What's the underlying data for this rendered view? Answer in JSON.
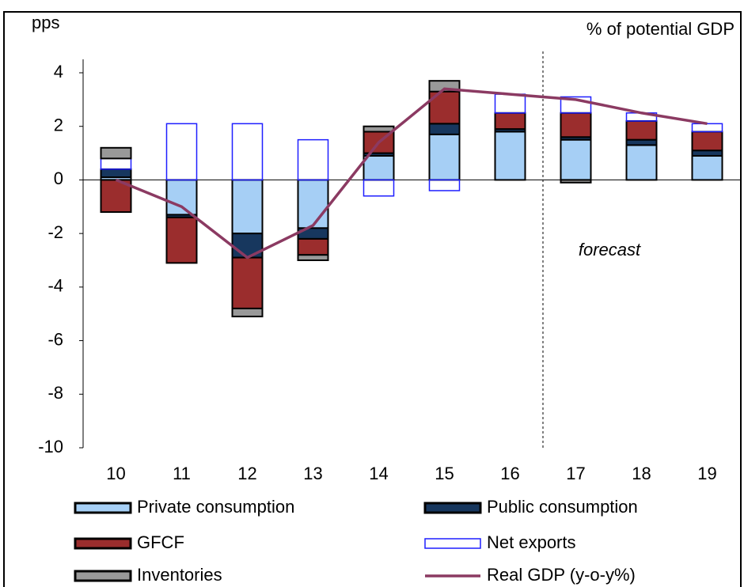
{
  "chart_data": {
    "type": "bar",
    "y_label": "pps",
    "right_label": "% of potential GDP",
    "annotation": "forecast",
    "categories": [
      "10",
      "11",
      "12",
      "13",
      "14",
      "15",
      "16",
      "17",
      "18",
      "19"
    ],
    "series": [
      {
        "name": "Private consumption",
        "color": "#a6cff5",
        "values": [
          0.1,
          -1.3,
          -2.0,
          -1.8,
          0.9,
          1.7,
          1.8,
          1.5,
          1.3,
          0.9
        ]
      },
      {
        "name": "Public consumption",
        "color": "#17375e",
        "values": [
          0.3,
          -0.1,
          -0.9,
          -0.4,
          0.1,
          0.4,
          0.1,
          0.1,
          0.2,
          0.2
        ]
      },
      {
        "name": "GFCF",
        "color": "#9b2d2d",
        "values": [
          -1.2,
          -1.7,
          -1.9,
          -0.6,
          0.8,
          1.2,
          0.6,
          0.9,
          0.7,
          0.7
        ]
      },
      {
        "name": "Net exports",
        "color": "#1f1fff",
        "values": [
          0.4,
          2.1,
          2.1,
          1.5,
          -0.6,
          -0.4,
          0.7,
          0.6,
          0.3,
          0.3
        ]
      },
      {
        "name": "Inventories",
        "color": "#999999",
        "values": [
          0.4,
          0,
          -0.3,
          -0.2,
          0.2,
          0.4,
          0,
          -0.1,
          0,
          0
        ]
      },
      {
        "name": "Real GDP (y-o-y%)",
        "type": "line",
        "color": "#8b3a62",
        "values": [
          0,
          -1.0,
          -2.9,
          -1.7,
          1.4,
          3.4,
          3.2,
          3.0,
          2.5,
          2.1
        ]
      }
    ],
    "ylim": [
      -10,
      4
    ],
    "yticks": [
      -10,
      -8,
      -6,
      -4,
      -2,
      0,
      2,
      4
    ]
  }
}
